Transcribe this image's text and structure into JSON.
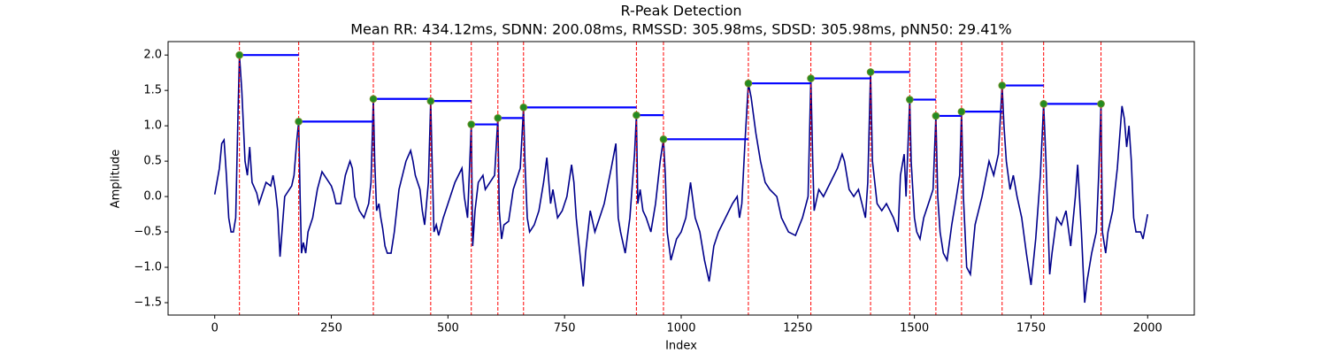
{
  "chart_data": {
    "type": "line",
    "title": "R-Peak Detection",
    "subtitle": "Mean RR: 434.12ms, SDNN: 200.08ms, RMSSD: 305.98ms, SDSD: 305.98ms, pNN50: 29.41%",
    "x_label": "Index",
    "y_label": "Amplitude",
    "color": "#00008b",
    "x": [
      0,
      10,
      15,
      20,
      25,
      30,
      35,
      40,
      45,
      50,
      53,
      58,
      65,
      70,
      75,
      80,
      90,
      95,
      100,
      110,
      120,
      125,
      130,
      135,
      140,
      150,
      160,
      165,
      170,
      176,
      180,
      183,
      186,
      190,
      195,
      200,
      210,
      220,
      230,
      240,
      250,
      255,
      260,
      270,
      280,
      290,
      295,
      300,
      310,
      320,
      330,
      335,
      340,
      343,
      347,
      352,
      356,
      360,
      365,
      370,
      378,
      385,
      395,
      410,
      420,
      425,
      430,
      440,
      445,
      450,
      458,
      463,
      466,
      470,
      475,
      480,
      490,
      500,
      515,
      530,
      535,
      542,
      550,
      553,
      558,
      565,
      575,
      580,
      590,
      600,
      607,
      610,
      615,
      620,
      630,
      640,
      655,
      662,
      665,
      670,
      675,
      685,
      695,
      705,
      712,
      720,
      725,
      735,
      745,
      755,
      765,
      770,
      775,
      790,
      795,
      805,
      815,
      825,
      835,
      850,
      860,
      865,
      870,
      880,
      890,
      900,
      904,
      907,
      912,
      918,
      925,
      935,
      945,
      955,
      962,
      966,
      970,
      978,
      990,
      1000,
      1010,
      1020,
      1030,
      1040,
      1050,
      1060,
      1070,
      1080,
      1095,
      1110,
      1120,
      1125,
      1130,
      1137,
      1144,
      1150,
      1160,
      1170,
      1180,
      1190,
      1205,
      1215,
      1230,
      1245,
      1260,
      1272,
      1278,
      1282,
      1285,
      1295,
      1305,
      1320,
      1335,
      1345,
      1350,
      1360,
      1370,
      1380,
      1395,
      1400,
      1406,
      1410,
      1420,
      1430,
      1440,
      1455,
      1465,
      1470,
      1478,
      1482,
      1490,
      1493,
      1500,
      1505,
      1512,
      1520,
      1530,
      1540,
      1546,
      1550,
      1555,
      1562,
      1570,
      1580,
      1590,
      1597,
      1601,
      1605,
      1612,
      1620,
      1630,
      1645,
      1660,
      1670,
      1680,
      1688,
      1692,
      1697,
      1705,
      1712,
      1720,
      1730,
      1740,
      1750,
      1760,
      1770,
      1777,
      1782,
      1790,
      1795,
      1805,
      1815,
      1825,
      1835,
      1845,
      1850,
      1858,
      1865,
      1870,
      1880,
      1890,
      1895,
      1900,
      1903,
      1910,
      1915,
      1925,
      1935,
      1945,
      1950,
      1955,
      1960,
      1965,
      1970,
      1975,
      1985,
      1990,
      2000
    ],
    "values": [
      0.03,
      0.4,
      0.75,
      0.8,
      0.3,
      -0.3,
      -0.5,
      -0.5,
      -0.3,
      1.2,
      2.0,
      1.5,
      0.5,
      0.3,
      0.7,
      0.2,
      0.05,
      -0.1,
      0.0,
      0.2,
      0.15,
      0.3,
      0.1,
      -0.2,
      -0.85,
      0.0,
      0.1,
      0.15,
      0.3,
      0.8,
      1.06,
      0.0,
      -0.8,
      -0.65,
      -0.8,
      -0.5,
      -0.3,
      0.1,
      0.35,
      0.25,
      0.15,
      0.05,
      -0.1,
      -0.1,
      0.3,
      0.5,
      0.4,
      0.0,
      -0.2,
      -0.3,
      -0.1,
      0.2,
      1.38,
      0.5,
      -0.2,
      -0.1,
      -0.3,
      -0.45,
      -0.7,
      -0.8,
      -0.8,
      -0.5,
      0.1,
      0.5,
      0.65,
      0.5,
      0.3,
      0.1,
      -0.2,
      -0.4,
      0.2,
      1.35,
      0.5,
      -0.5,
      -0.4,
      -0.55,
      -0.3,
      -0.1,
      0.2,
      0.4,
      0.0,
      -0.3,
      1.02,
      -0.7,
      -0.2,
      0.2,
      0.3,
      0.1,
      0.2,
      0.3,
      1.11,
      -0.2,
      -0.6,
      -0.4,
      -0.35,
      0.1,
      0.4,
      1.26,
      0.5,
      -0.3,
      -0.5,
      -0.4,
      -0.2,
      0.2,
      0.55,
      -0.1,
      0.1,
      -0.3,
      -0.2,
      0.0,
      0.45,
      0.2,
      -0.3,
      -1.27,
      -0.8,
      -0.2,
      -0.5,
      -0.3,
      -0.1,
      0.4,
      0.75,
      -0.3,
      -0.5,
      -0.8,
      -0.3,
      0.6,
      1.15,
      -0.1,
      0.1,
      -0.2,
      -0.3,
      -0.5,
      -0.1,
      0.5,
      0.81,
      0.3,
      -0.5,
      -0.9,
      -0.6,
      -0.5,
      -0.3,
      0.2,
      -0.3,
      -0.5,
      -0.9,
      -1.2,
      -0.7,
      -0.5,
      -0.3,
      -0.1,
      0.0,
      -0.3,
      -0.1,
      0.8,
      1.6,
      1.4,
      0.9,
      0.5,
      0.2,
      0.1,
      0.0,
      -0.3,
      -0.5,
      -0.55,
      -0.3,
      0.0,
      1.67,
      0.5,
      -0.2,
      0.1,
      0.0,
      0.2,
      0.4,
      0.6,
      0.5,
      0.1,
      0.0,
      0.1,
      -0.3,
      0.2,
      1.76,
      0.5,
      -0.1,
      -0.2,
      -0.1,
      -0.3,
      -0.5,
      0.3,
      0.6,
      0.0,
      1.37,
      0.5,
      -0.3,
      -0.5,
      -0.6,
      -0.3,
      -0.1,
      0.1,
      1.14,
      0.0,
      -0.5,
      -0.8,
      -0.9,
      -0.4,
      0.0,
      0.3,
      1.2,
      0.0,
      -1.0,
      -1.1,
      -0.4,
      0.0,
      0.5,
      0.3,
      0.6,
      1.57,
      1.0,
      0.5,
      0.1,
      0.3,
      0.0,
      -0.3,
      -0.8,
      -1.25,
      -0.6,
      0.3,
      1.31,
      0.5,
      -1.1,
      -0.8,
      -0.3,
      -0.4,
      -0.2,
      -0.7,
      0.0,
      0.45,
      -0.5,
      -1.5,
      -1.2,
      -0.8,
      -0.5,
      0.3,
      1.31,
      -0.5,
      -0.8,
      -0.5,
      -0.2,
      0.4,
      1.28,
      1.1,
      0.7,
      1.0,
      0.5,
      -0.3,
      -0.5,
      -0.5,
      -0.6,
      -0.25
    ],
    "peak_x": [
      53,
      180,
      340,
      463,
      550,
      607,
      662,
      904,
      962,
      1144,
      1278,
      1406,
      1490,
      1546,
      1601,
      1688,
      1777,
      1900
    ],
    "peak_values": [
      2.0,
      1.06,
      1.38,
      1.35,
      1.02,
      1.11,
      1.26,
      1.15,
      0.81,
      1.6,
      1.67,
      1.76,
      1.37,
      1.14,
      1.2,
      1.57,
      1.31,
      1.31
    ],
    "peak_color": "#228b22",
    "peak_line_color": "#ff0000",
    "interval_color": "#0000ff",
    "xlim": [
      -100,
      2100
    ],
    "ylim": [
      -1.675,
      2.19
    ],
    "xticks": [
      0,
      250,
      500,
      750,
      1000,
      1250,
      1500,
      1750,
      2000
    ],
    "yticks": [
      {
        "value": -1.5,
        "label": "−1.5"
      },
      {
        "value": -1.0,
        "label": "−1.0"
      },
      {
        "value": -0.5,
        "label": "−0.5"
      },
      {
        "value": 0,
        "label": "0.0"
      },
      {
        "value": 0.5,
        "label": "0.5"
      },
      {
        "value": 1.0,
        "label": "1.0"
      },
      {
        "value": 1.5,
        "label": "1.5"
      },
      {
        "value": 2.0,
        "label": "2.0"
      }
    ]
  }
}
